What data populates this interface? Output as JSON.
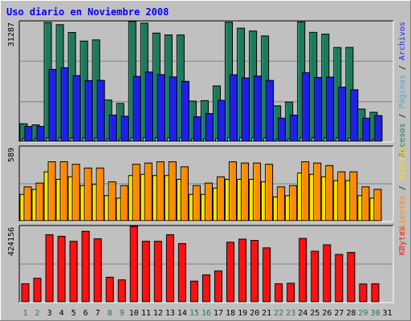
{
  "chart_data": [
    {
      "type": "bar",
      "title": "Uso diario en Noviembre 2008",
      "categories": [
        "1",
        "2",
        "3",
        "4",
        "5",
        "6",
        "7",
        "8",
        "9",
        "10",
        "11",
        "12",
        "13",
        "14",
        "15",
        "16",
        "17",
        "18",
        "19",
        "20",
        "21",
        "22",
        "23",
        "24",
        "25",
        "26",
        "27",
        "28",
        "29",
        "30",
        "31"
      ],
      "weekend_days": [
        "1",
        "2",
        "8",
        "9",
        "15",
        "16",
        "22",
        "23",
        "29",
        "30"
      ],
      "ytick": "31287",
      "series": [
        {
          "name": "Accesos",
          "color": "#1e7a5a",
          "values": [
            4580,
            4290,
            31090,
            30490,
            28460,
            26210,
            26520,
            10790,
            9890,
            31340,
            30900,
            28300,
            27820,
            27810,
            10500,
            10630,
            14470,
            31150,
            29580,
            28840,
            27540,
            9270,
            10250,
            31210,
            28490,
            28040,
            24530,
            24550,
            8430,
            7580,
            null
          ]
        },
        {
          "name": "Páginas",
          "color": "#55aad0",
          "values": [
            700,
            650,
            920,
            900,
            880,
            860,
            860,
            640,
            620,
            930,
            920,
            900,
            880,
            880,
            620,
            620,
            700,
            920,
            910,
            890,
            870,
            600,
            620,
            930,
            900,
            880,
            860,
            860,
            580,
            560,
            null
          ]
        },
        {
          "name": "Archivos",
          "color": "#1f1fe6",
          "values": [
            3870,
            3870,
            18790,
            19230,
            17180,
            15890,
            15940,
            6850,
            6550,
            16960,
            18120,
            17430,
            16820,
            15680,
            6400,
            7250,
            10700,
            17380,
            16560,
            17050,
            15920,
            6040,
            6830,
            17920,
            16690,
            16780,
            14150,
            13470,
            6040,
            6710,
            null
          ]
        }
      ]
    },
    {
      "type": "bar",
      "ytick": "589",
      "series": [
        {
          "name": "Visitas",
          "color": "#ffe000",
          "values": [
            210,
            250,
            390,
            330,
            350,
            280,
            290,
            200,
            180,
            360,
            370,
            360,
            360,
            330,
            210,
            210,
            260,
            330,
            330,
            330,
            310,
            190,
            200,
            380,
            370,
            350,
            320,
            320,
            200,
            180,
            null
          ]
        },
        {
          "name": "Clientes",
          "color": "#ff8a00",
          "values": [
            270,
            300,
            470,
            470,
            450,
            420,
            420,
            310,
            280,
            450,
            460,
            470,
            470,
            430,
            280,
            300,
            350,
            470,
            460,
            460,
            450,
            270,
            280,
            470,
            460,
            440,
            390,
            390,
            270,
            250,
            null
          ]
        }
      ]
    },
    {
      "type": "bar",
      "ytick": "424156",
      "series": [
        {
          "name": "KBytes",
          "color": "#ff1010",
          "values": [
            101000,
            132000,
            377000,
            368000,
            340000,
            396000,
            354000,
            138000,
            123000,
            424156,
            340000,
            340000,
            377000,
            327000,
            116000,
            151000,
            173000,
            335000,
            352000,
            345000,
            303000,
            101000,
            104000,
            356000,
            284000,
            320000,
            266000,
            277000,
            100000,
            101000,
            null
          ]
        }
      ]
    }
  ],
  "ui": {
    "title": "Uso diario en Noviembre 2008",
    "legend_top": [
      "Accesos",
      "Páginas",
      "Archivos"
    ],
    "legend_mid": [
      "Clientes",
      "Visitas"
    ],
    "legend_bot": [
      "KBytes"
    ],
    "legend_sep": " / ",
    "colors": {
      "background": "#c0c0c0",
      "title": "#0000ff",
      "weekday_text": "#000000",
      "weekend_text": "#1e7a5a",
      "gridline": "#808080"
    }
  }
}
